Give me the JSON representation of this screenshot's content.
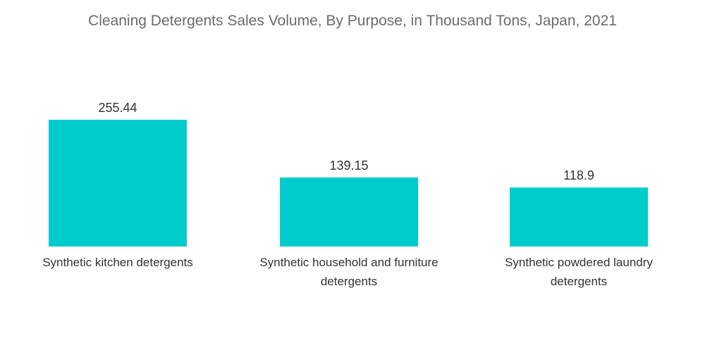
{
  "chart_data": {
    "type": "bar",
    "title": "Cleaning Detergents Sales Volume, By Purpose, in Thousand Tons, Japan, 2021",
    "categories": [
      "Synthetic kitchen detergents",
      "Synthetic household and furniture detergents",
      "Synthetic powdered laundry detergents"
    ],
    "category_label_lines": [
      [
        "Synthetic kitchen detergents"
      ],
      [
        "Synthetic household and furniture",
        "detergents"
      ],
      [
        "Synthetic powdered laundry",
        "detergents"
      ]
    ],
    "values": [
      255.44,
      139.15,
      118.9
    ],
    "value_labels": [
      "255.44",
      "139.15",
      "118.9"
    ],
    "bar_color": "#00cccc",
    "xlabel": "",
    "ylabel": "",
    "ylim": [
      0,
      255.44
    ],
    "grid": false,
    "legend": "none"
  }
}
